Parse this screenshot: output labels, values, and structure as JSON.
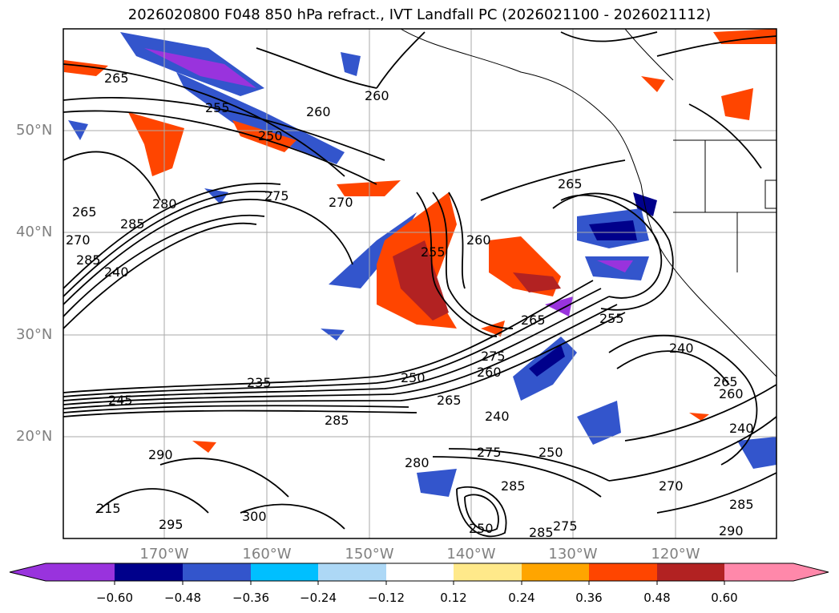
{
  "title": "2026020800 F048 850 hPa refract., IVT Landfall PC (2026021100 - 2026021112)",
  "lat_labels": [
    "50°N",
    "40°N",
    "30°N",
    "20°N"
  ],
  "lon_labels": [
    "170°W",
    "160°W",
    "150°W",
    "140°W",
    "130°W",
    "120°W"
  ],
  "colorbar": {
    "ticks": [
      "−0.60",
      "−0.48",
      "−0.36",
      "−0.24",
      "−0.12",
      "0.12",
      "0.24",
      "0.36",
      "0.48",
      "0.60"
    ],
    "colors": [
      "#9933dd",
      "#00008b",
      "#3355cc",
      "#00bfff",
      "#add8f6",
      "#ffffff",
      "#ffe98a",
      "#ffa500",
      "#ff4500",
      "#b22222",
      "#ff88aa"
    ]
  },
  "contour_labels": [
    "265",
    "255",
    "260",
    "260",
    "250",
    "275",
    "270",
    "265",
    "265",
    "280",
    "285",
    "270",
    "285",
    "240",
    "255",
    "260",
    "265",
    "255",
    "240",
    "265",
    "235",
    "245",
    "250",
    "275",
    "260",
    "265",
    "285",
    "240",
    "250",
    "275",
    "280",
    "290",
    "285",
    "300",
    "295",
    "215",
    "285",
    "275",
    "250",
    "260",
    "285",
    "290",
    "270",
    "240"
  ]
}
